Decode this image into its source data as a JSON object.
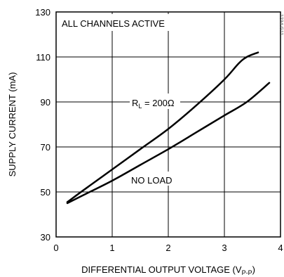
{
  "chart_data": {
    "type": "line",
    "xlabel": {
      "main": "DIFFERENTIAL OUTPUT VOLTAGE (V",
      "sub": "P-P",
      "close": ")"
    },
    "ylabel": "SUPPLY CURRENT (mA)",
    "xlim": [
      0,
      4
    ],
    "ylim": [
      30,
      130
    ],
    "xticks": [
      0,
      1,
      2,
      3,
      4
    ],
    "yticks": [
      30,
      50,
      70,
      90,
      110,
      130
    ],
    "grid": true,
    "annotations": {
      "box_text": "ALL CHANNELS ACTIVE",
      "rl_label": {
        "main": "R",
        "sub": "L",
        "rest": " = 200Ω"
      },
      "no_load": "NO LOAD",
      "watermark": "1234 G11"
    },
    "series": [
      {
        "key": "rl200",
        "x": [
          0.2,
          0.5,
          1.0,
          1.5,
          2.0,
          2.5,
          3.0,
          3.25,
          3.4,
          3.6
        ],
        "y": [
          45.5,
          51,
          60,
          69,
          78,
          88.5,
          100,
          107,
          110,
          112
        ]
      },
      {
        "key": "noload",
        "x": [
          0.2,
          0.6,
          1.0,
          1.5,
          2.0,
          2.5,
          3.0,
          3.4,
          3.8
        ],
        "y": [
          45,
          50,
          55,
          62,
          69,
          76.5,
          84,
          90,
          98.5
        ]
      }
    ]
  }
}
